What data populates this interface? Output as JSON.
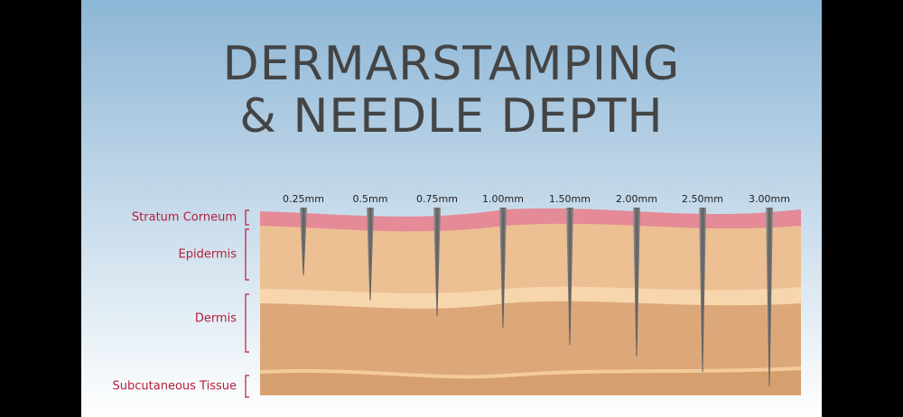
{
  "title": {
    "lines": [
      "DERMARSTAMPING",
      "& NEEDLE DEPTH"
    ]
  },
  "layers": [
    "Stratum Corneum",
    "Epidermis",
    "Dermis",
    "Subcutaneous Tissue"
  ],
  "needles": [
    "0.25mm",
    "0.5mm",
    "0.75mm",
    "1.00mm",
    "1.50mm",
    "2.00mm",
    "2.50mm",
    "3.00mm"
  ]
}
